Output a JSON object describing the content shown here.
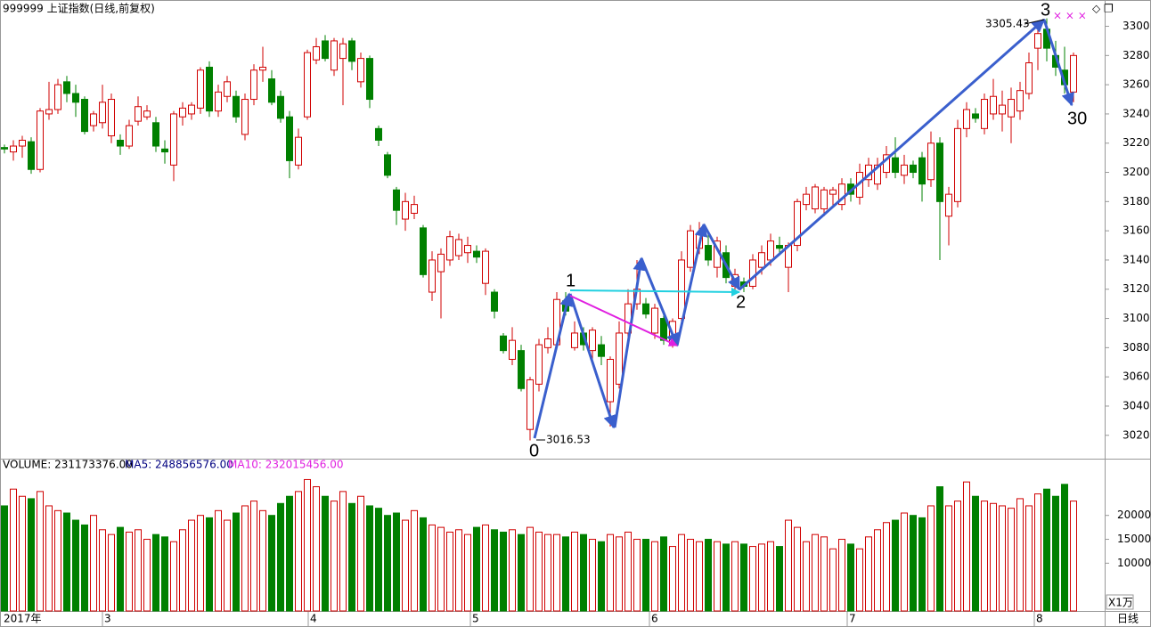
{
  "header": {
    "title": "999999 上证指数(日线,前复权)"
  },
  "chart_data": [
    {
      "type": "candlestick",
      "ylim": [
        3004,
        3318
      ],
      "yticks": [
        3020,
        3040,
        3060,
        3080,
        3100,
        3120,
        3140,
        3160,
        3180,
        3200,
        3220,
        3240,
        3260,
        3280,
        3300
      ],
      "candles": [
        [
          3217,
          3219,
          3213,
          3216
        ],
        [
          3214,
          3222,
          3208,
          3218
        ],
        [
          3218,
          3225,
          3210,
          3222
        ],
        [
          3221,
          3224,
          3199,
          3202
        ],
        [
          3202,
          3244,
          3200,
          3242
        ],
        [
          3240,
          3262,
          3236,
          3243
        ],
        [
          3243,
          3264,
          3240,
          3260
        ],
        [
          3262,
          3266,
          3248,
          3254
        ],
        [
          3254,
          3260,
          3238,
          3248
        ],
        [
          3250,
          3252,
          3226,
          3228
        ],
        [
          3232,
          3242,
          3228,
          3240
        ],
        [
          3234,
          3260,
          3230,
          3248
        ],
        [
          3225,
          3254,
          3220,
          3250
        ],
        [
          3222,
          3226,
          3212,
          3218
        ],
        [
          3218,
          3236,
          3216,
          3232
        ],
        [
          3235,
          3252,
          3232,
          3245
        ],
        [
          3238,
          3246,
          3236,
          3242
        ],
        [
          3234,
          3238,
          3214,
          3218
        ],
        [
          3216,
          3222,
          3206,
          3214
        ],
        [
          3205,
          3242,
          3194,
          3240
        ],
        [
          3238,
          3248,
          3232,
          3244
        ],
        [
          3240,
          3248,
          3236,
          3246
        ],
        [
          3244,
          3272,
          3240,
          3270
        ],
        [
          3272,
          3276,
          3238,
          3242
        ],
        [
          3242,
          3260,
          3238,
          3255
        ],
        [
          3252,
          3266,
          3248,
          3262
        ],
        [
          3252,
          3256,
          3234,
          3238
        ],
        [
          3226,
          3254,
          3222,
          3250
        ],
        [
          3250,
          3274,
          3246,
          3270
        ],
        [
          3270,
          3286,
          3262,
          3272
        ],
        [
          3264,
          3270,
          3246,
          3248
        ],
        [
          3252,
          3256,
          3234,
          3237
        ],
        [
          3238,
          3242,
          3196,
          3208
        ],
        [
          3205,
          3230,
          3202,
          3224
        ],
        [
          3238,
          3284,
          3236,
          3282
        ],
        [
          3277,
          3292,
          3274,
          3286
        ],
        [
          3290,
          3294,
          3276,
          3278
        ],
        [
          3270,
          3292,
          3266,
          3290
        ],
        [
          3278,
          3292,
          3246,
          3288
        ],
        [
          3290,
          3292,
          3270,
          3276
        ],
        [
          3262,
          3282,
          3258,
          3278
        ],
        [
          3278,
          3280,
          3244,
          3250
        ],
        [
          3230,
          3232,
          3218,
          3222
        ],
        [
          3212,
          3214,
          3196,
          3198
        ],
        [
          3188,
          3190,
          3164,
          3174
        ],
        [
          3168,
          3186,
          3160,
          3180
        ],
        [
          3172,
          3184,
          3168,
          3178
        ],
        [
          3162,
          3164,
          3128,
          3130
        ],
        [
          3118,
          3146,
          3112,
          3140
        ],
        [
          3132,
          3148,
          3100,
          3144
        ],
        [
          3140,
          3160,
          3136,
          3156
        ],
        [
          3143,
          3158,
          3140,
          3154
        ],
        [
          3145,
          3156,
          3138,
          3150
        ],
        [
          3146,
          3150,
          3138,
          3142
        ],
        [
          3124,
          3148,
          3116,
          3146
        ],
        [
          3118,
          3120,
          3100,
          3105
        ],
        [
          3088,
          3090,
          3076,
          3078
        ],
        [
          3072,
          3094,
          3068,
          3085
        ],
        [
          3078,
          3082,
          3050,
          3052
        ],
        [
          3024,
          3060,
          3016.53,
          3058
        ],
        [
          3055,
          3086,
          3050,
          3082
        ],
        [
          3080,
          3094,
          3076,
          3086
        ],
        [
          3082,
          3118,
          3080,
          3113
        ],
        [
          3112,
          3118,
          3102,
          3105
        ],
        [
          3080,
          3098,
          3078,
          3090
        ],
        [
          3090,
          3094,
          3078,
          3082
        ],
        [
          3078,
          3094,
          3070,
          3092
        ],
        [
          3082,
          3088,
          3068,
          3074
        ],
        [
          3043,
          3074,
          3026,
          3072
        ],
        [
          3055,
          3098,
          3052,
          3090
        ],
        [
          3090,
          3120,
          3086,
          3110
        ],
        [
          3110,
          3140,
          3106,
          3120
        ],
        [
          3110,
          3114,
          3100,
          3103
        ],
        [
          3090,
          3110,
          3086,
          3107
        ],
        [
          3100,
          3104,
          3082,
          3085
        ],
        [
          3083,
          3100,
          3080,
          3098
        ],
        [
          3100,
          3146,
          3098,
          3140
        ],
        [
          3135,
          3164,
          3132,
          3160
        ],
        [
          3148,
          3166,
          3144,
          3158
        ],
        [
          3150,
          3158,
          3136,
          3140
        ],
        [
          3135,
          3156,
          3128,
          3153
        ],
        [
          3145,
          3150,
          3124,
          3128
        ],
        [
          3122,
          3134,
          3118,
          3130
        ],
        [
          3125,
          3128,
          3118,
          3122
        ],
        [
          3122,
          3144,
          3120,
          3140
        ],
        [
          3135,
          3150,
          3130,
          3145
        ],
        [
          3140,
          3158,
          3136,
          3153
        ],
        [
          3150,
          3156,
          3144,
          3148
        ],
        [
          3135,
          3152,
          3118,
          3150
        ],
        [
          3150,
          3182,
          3146,
          3180
        ],
        [
          3178,
          3190,
          3174,
          3185
        ],
        [
          3175,
          3192,
          3172,
          3190
        ],
        [
          3175,
          3190,
          3170,
          3188
        ],
        [
          3185,
          3190,
          3176,
          3188
        ],
        [
          3178,
          3196,
          3174,
          3192
        ],
        [
          3192,
          3196,
          3180,
          3185
        ],
        [
          3183,
          3206,
          3178,
          3200
        ],
        [
          3195,
          3210,
          3190,
          3205
        ],
        [
          3192,
          3210,
          3188,
          3205
        ],
        [
          3200,
          3218,
          3196,
          3212
        ],
        [
          3210,
          3224,
          3196,
          3200
        ],
        [
          3198,
          3212,
          3192,
          3205
        ],
        [
          3205,
          3208,
          3196,
          3200
        ],
        [
          3210,
          3214,
          3180,
          3192
        ],
        [
          3195,
          3228,
          3190,
          3220
        ],
        [
          3220,
          3224,
          3140,
          3180
        ],
        [
          3170,
          3190,
          3150,
          3185
        ],
        [
          3180,
          3236,
          3176,
          3230
        ],
        [
          3230,
          3248,
          3224,
          3243
        ],
        [
          3240,
          3244,
          3234,
          3237
        ],
        [
          3230,
          3254,
          3226,
          3250
        ],
        [
          3240,
          3264,
          3236,
          3252
        ],
        [
          3240,
          3256,
          3228,
          3246
        ],
        [
          3238,
          3258,
          3220,
          3250
        ],
        [
          3242,
          3262,
          3236,
          3256
        ],
        [
          3254,
          3282,
          3250,
          3275
        ],
        [
          3285,
          3300,
          3270,
          3295
        ],
        [
          3298,
          3305.43,
          3276,
          3285
        ],
        [
          3280,
          3290,
          3266,
          3272
        ],
        [
          3270,
          3286,
          3254,
          3260
        ],
        [
          3255,
          3282,
          3248,
          3280
        ]
      ]
    },
    {
      "type": "bar",
      "legend": [
        "VOLUME: 231173376.00",
        "MA5: 248856576.00",
        "MA10: 232015456.00"
      ],
      "unit": "X1万",
      "ylim": [
        0,
        31500
      ],
      "yticks": [
        10000,
        15000,
        20000
      ],
      "values": [
        22000,
        25500,
        24000,
        23500,
        25000,
        22000,
        21000,
        20500,
        19000,
        18000,
        20000,
        17000,
        16000,
        17500,
        16500,
        17000,
        15000,
        16000,
        15500,
        14500,
        17000,
        19000,
        20000,
        19500,
        21000,
        19000,
        20500,
        22000,
        23000,
        21000,
        20000,
        22500,
        24000,
        25000,
        27500,
        26000,
        24000,
        23000,
        25000,
        22500,
        24000,
        22000,
        21500,
        20000,
        20500,
        19000,
        21000,
        19500,
        18000,
        17500,
        16500,
        17000,
        16000,
        17500,
        18000,
        17000,
        16500,
        17000,
        16000,
        17500,
        16500,
        16000,
        16000,
        15500,
        16500,
        16000,
        15000,
        14500,
        16000,
        15500,
        16500,
        15000,
        15000,
        14500,
        15500,
        13500,
        16000,
        15000,
        14500,
        15000,
        14500,
        14000,
        14500,
        14000,
        13500,
        14000,
        14500,
        13500,
        19000,
        17500,
        14500,
        16000,
        15500,
        13000,
        15000,
        14000,
        13000,
        15500,
        17000,
        18500,
        19000,
        20500,
        20000,
        19500,
        22000,
        26000,
        22000,
        23000,
        27000,
        24000,
        23000,
        22500,
        22000,
        21500,
        23500,
        22000,
        24500,
        25500,
        24000,
        26500,
        23000
      ]
    }
  ],
  "x_axis_labels": [
    "2017年",
    "3",
    "4",
    "5",
    "6",
    "7",
    "8"
  ],
  "period": "日线",
  "annotations": {
    "wave_labels": [
      "0",
      "1",
      "2",
      "3",
      "30"
    ],
    "high_label": "3305.43",
    "low_label": "3016.53"
  }
}
